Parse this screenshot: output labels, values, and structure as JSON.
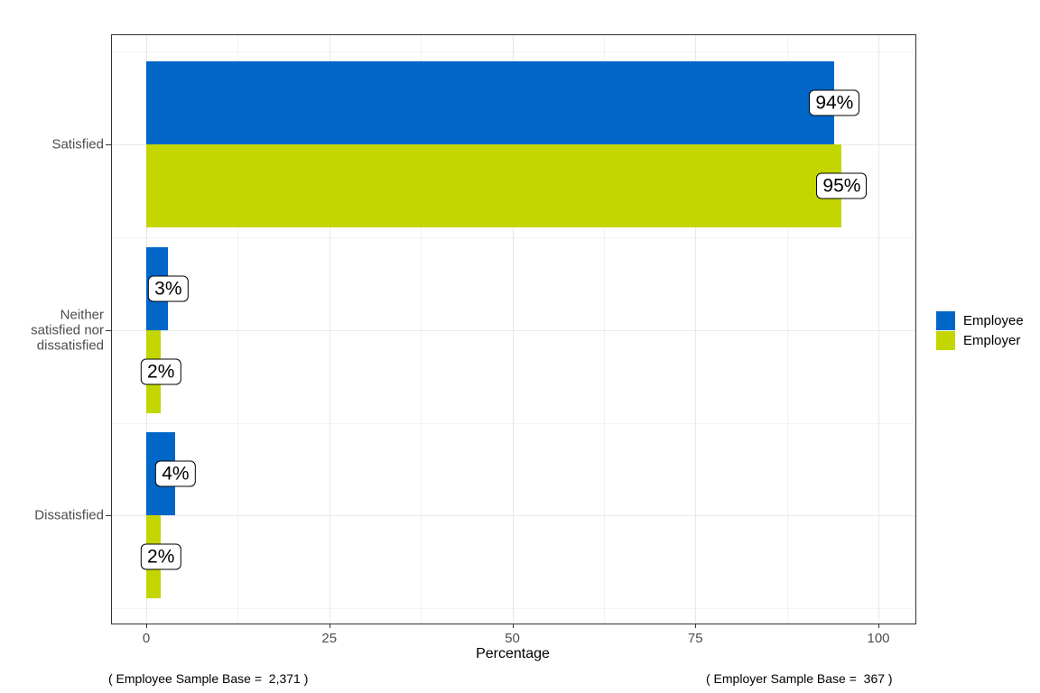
{
  "chart_data": {
    "type": "bar",
    "orientation": "horizontal",
    "title": "",
    "xlabel": "Percentage",
    "ylabel": "",
    "xlim": [
      0,
      100
    ],
    "x_ticks": [
      0,
      25,
      50,
      75,
      100
    ],
    "x_minor_ticks": [
      12.5,
      37.5,
      62.5,
      87.5
    ],
    "categories": [
      "Satisfied",
      "Neither\nsatisfied nor\ndissatisfied",
      "Dissatisfied"
    ],
    "series": [
      {
        "name": "Employee",
        "color": "#0066C8",
        "values": [
          94,
          3,
          4
        ],
        "value_labels": [
          "94%",
          "3%",
          "4%"
        ]
      },
      {
        "name": "Employer",
        "color": "#C4D600",
        "values": [
          95,
          2,
          2
        ],
        "value_labels": [
          "95%",
          "2%",
          "2%"
        ]
      }
    ],
    "legend_position": "right",
    "grid": "vertical major+minor, horizontal major+minor"
  },
  "footer": {
    "left": "( Employee Sample Base =  2,371 )",
    "right": "( Employer Sample Base =  367 )"
  },
  "colors": {
    "employee": "#0066C8",
    "employer": "#C4D600",
    "panel_border": "#333333",
    "grid_major": "#E8E8E8",
    "grid_minor": "#F3F3F3",
    "axis_text": "#4D4D4D",
    "label_box_bg": "#FFFFFF",
    "label_box_border": "#000000"
  }
}
